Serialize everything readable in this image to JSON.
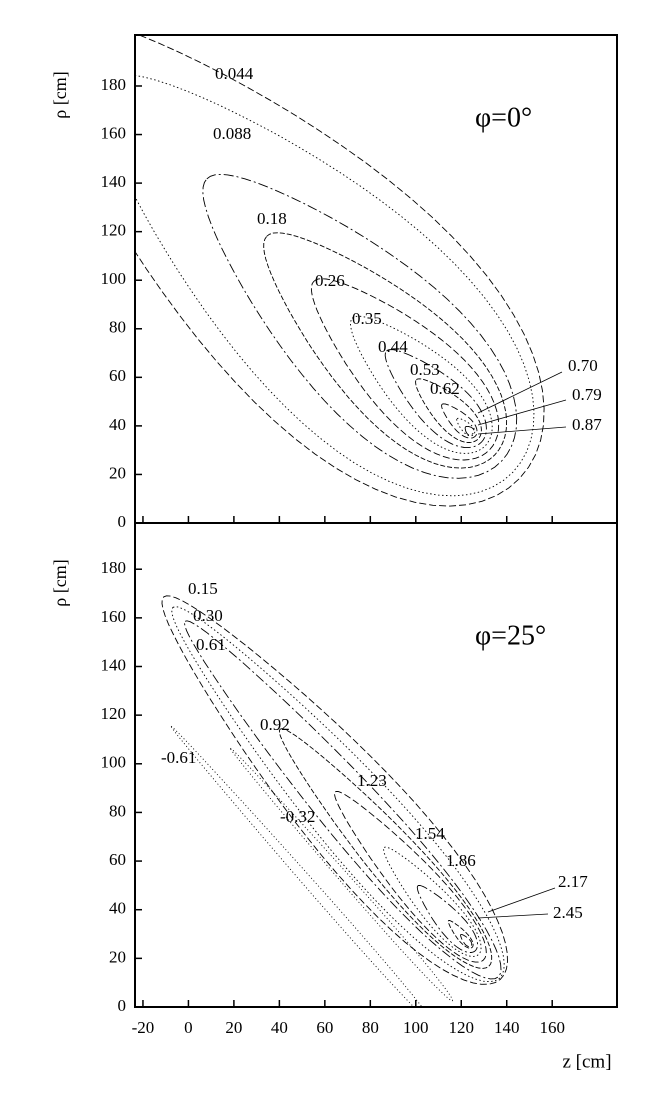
{
  "chart_data": [
    {
      "type": "contour",
      "ylabel": "ρ [cm]",
      "annotation": "φ=0°",
      "xlim": [
        -23.5,
        188.5
      ],
      "xticks": [
        -20,
        0,
        20,
        40,
        60,
        80,
        100,
        120,
        140,
        160
      ],
      "ylim": [
        0,
        201
      ],
      "yticks": [
        0,
        20,
        40,
        60,
        80,
        100,
        120,
        140,
        160,
        180
      ],
      "values": [
        0.044,
        0.088,
        0.18,
        0.26,
        0.35,
        0.44,
        0.53,
        0.62,
        0.7,
        0.79,
        0.87
      ],
      "value_labels": [
        "0.044",
        "0.088",
        "0.18",
        "0.26",
        "0.35",
        "0.44",
        "0.53",
        "0.62",
        "0.70",
        "0.79",
        "0.87"
      ]
    },
    {
      "type": "contour",
      "ylabel": "ρ [cm]",
      "annotation": "φ=25°",
      "xlabel": "z [cm]",
      "xlim": [
        -23.5,
        188.5
      ],
      "xticks": [
        -20,
        0,
        20,
        40,
        60,
        80,
        100,
        120,
        140,
        160
      ],
      "ylim": [
        0,
        199
      ],
      "yticks": [
        0,
        20,
        40,
        60,
        80,
        100,
        120,
        140,
        160,
        180
      ],
      "values": [
        0.15,
        0.3,
        0.61,
        0.92,
        1.23,
        1.54,
        1.86,
        2.17,
        2.45,
        -0.61,
        -0.32
      ],
      "value_labels": [
        "0.15",
        "0.30",
        "0.61",
        "0.92",
        "1.23",
        "1.54",
        "1.86",
        "2.17",
        "2.45",
        "-0.61",
        "-0.32"
      ]
    }
  ]
}
